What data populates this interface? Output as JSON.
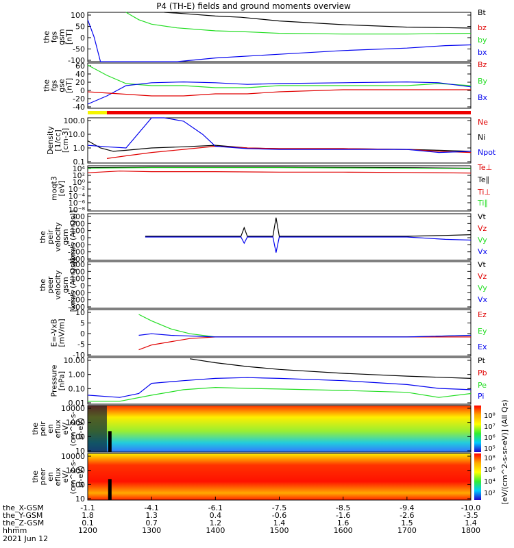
{
  "title": "P4 (TH-E) fields and ground moments overview",
  "colors": {
    "black": "#000000",
    "red": "#e00000",
    "green": "#22dd22",
    "blue": "#0000ee",
    "yellow": "#f5f500",
    "bar_red": "#ee0000"
  },
  "chart_data": [
    {
      "type": "line",
      "panel": "fgs_gsm",
      "ylabel": [
        "the",
        "fgs",
        "gsm",
        "[nT]"
      ],
      "yticks": [
        "100",
        "50",
        "0",
        "-50",
        "-100"
      ],
      "ylim": [
        -100,
        100
      ],
      "legend": [
        {
          "label": "Bt",
          "color": "black"
        },
        {
          "label": "bz",
          "color": "red"
        },
        {
          "label": "by",
          "color": "green"
        },
        {
          "label": "bx",
          "color": "blue"
        }
      ],
      "series": [
        {
          "name": "Bt",
          "color": "black",
          "x": [
            13.2,
            13.5,
            14.0,
            14.4,
            15.0,
            16.0,
            17.0,
            17.6,
            18.0
          ],
          "y": [
            100,
            95,
            85,
            80,
            65,
            50,
            40,
            38,
            36
          ]
        },
        {
          "name": "by",
          "color": "green",
          "x": [
            12.6,
            12.8,
            13.0,
            13.4,
            14.0,
            14.4,
            15.0,
            16.0,
            17.0,
            18.0
          ],
          "y": [
            100,
            70,
            52,
            37,
            25,
            22,
            15,
            12,
            12,
            15
          ]
        },
        {
          "name": "bx",
          "color": "blue",
          "x": [
            12.0,
            12.1,
            12.2,
            12.9,
            13.4,
            14.0,
            15.0,
            16.0,
            17.0,
            17.6,
            18.0
          ],
          "y": [
            70,
            0,
            -100,
            -100,
            -100,
            -85,
            -70,
            -55,
            -45,
            -35,
            -32
          ]
        }
      ]
    },
    {
      "type": "line",
      "panel": "fgs_gse",
      "ylabel": [
        "the",
        "fgs",
        "gse",
        "[nT]"
      ],
      "yticks": [
        "60",
        "40",
        "20",
        "0",
        "-20",
        "-40"
      ],
      "ylim": [
        -50,
        60
      ],
      "legend": [
        {
          "label": "Bz",
          "color": "red"
        },
        {
          "label": "By",
          "color": "green"
        },
        {
          "label": "Bx",
          "color": "blue"
        }
      ],
      "series": [
        {
          "name": "By",
          "color": "green",
          "x": [
            12.0,
            12.3,
            12.6,
            13.0,
            13.5,
            14.0,
            14.5,
            15.0,
            16.0,
            17.0,
            17.5,
            18.0
          ],
          "y": [
            55,
            30,
            10,
            5,
            5,
            0,
            0,
            5,
            5,
            5,
            10,
            5
          ]
        },
        {
          "name": "Bx",
          "color": "blue",
          "x": [
            12.0,
            12.3,
            12.6,
            13.0,
            13.5,
            14.0,
            14.5,
            15.0,
            16.0,
            17.0,
            17.5,
            18.0
          ],
          "y": [
            -40,
            -20,
            5,
            12,
            14,
            12,
            8,
            10,
            12,
            14,
            12,
            2
          ]
        },
        {
          "name": "Bz",
          "color": "red",
          "x": [
            12.0,
            12.5,
            13.0,
            13.5,
            14.0,
            14.5,
            15.0,
            16.0,
            17.0,
            18.0
          ],
          "y": [
            -10,
            -15,
            -20,
            -20,
            -15,
            -15,
            -10,
            -5,
            -5,
            -5
          ]
        }
      ]
    },
    {
      "type": "line",
      "panel": "density",
      "yscale": "log",
      "ylabel": [
        "Density",
        "[1/cc]",
        "[cm-3]"
      ],
      "yticks": [
        "100.0",
        "10.0",
        "1.0",
        "0.1"
      ],
      "ylim": [
        0.1,
        100
      ],
      "legend": [
        {
          "label": "Ne",
          "color": "red"
        },
        {
          "label": "Ni",
          "color": "black"
        },
        {
          "label": "Npot",
          "color": "blue"
        }
      ],
      "series": [
        {
          "name": "Ni",
          "color": "black",
          "x": [
            12.0,
            12.2,
            12.4,
            12.6,
            13.0,
            13.5,
            14.0,
            14.5,
            15.0,
            16.0,
            17.0,
            17.5,
            18.0
          ],
          "y": [
            3,
            1.0,
            0.6,
            0.7,
            1.0,
            1.2,
            1.5,
            1.0,
            0.9,
            0.9,
            0.8,
            0.7,
            0.6
          ]
        },
        {
          "name": "Ne",
          "color": "red",
          "x": [
            12.3,
            12.6,
            13.0,
            13.5,
            14.0,
            14.5,
            15.0,
            16.0,
            17.0,
            17.5,
            18.0
          ],
          "y": [
            0.2,
            0.3,
            0.5,
            0.8,
            1.3,
            1.0,
            0.9,
            0.9,
            0.8,
            0.6,
            0.5
          ]
        },
        {
          "name": "Npot",
          "color": "blue",
          "x": [
            12.0,
            12.3,
            12.6,
            13.0,
            13.2,
            13.5,
            13.8,
            14.0,
            14.5,
            15.0,
            16.0,
            17.0,
            17.5,
            18.0
          ],
          "y": [
            1.5,
            1.2,
            1.0,
            100,
            100,
            60,
            8,
            1.3,
            0.9,
            0.8,
            0.8,
            0.8,
            0.5,
            0.6
          ]
        }
      ]
    },
    {
      "type": "line",
      "panel": "temperature",
      "yscale": "log",
      "ylabel": [
        "moqt3",
        "[eV]"
      ],
      "yticks": [
        "10⁴",
        "10²",
        "10⁰",
        "10⁻²",
        "10⁻⁴",
        "10⁻⁶",
        "10⁻⁸"
      ],
      "ylim": [
        1e-09,
        10000.0
      ],
      "legend": [
        {
          "label": "Te⊥",
          "color": "red"
        },
        {
          "label": "Te∥",
          "color": "black"
        },
        {
          "label": "Ti⊥",
          "color": "red"
        },
        {
          "label": "Ti∥",
          "color": "green"
        }
      ],
      "series": [
        {
          "name": "Te∥",
          "color": "black",
          "x": [
            12.0,
            13.0,
            14.0,
            15.0,
            16.0,
            17.0,
            18.0
          ],
          "y": [
            3000,
            4000,
            4000,
            4000,
            3500,
            3000,
            2000
          ]
        },
        {
          "name": "Ti∥",
          "color": "green",
          "x": [
            12.0,
            13.0,
            14.0,
            15.0,
            16.0,
            17.0,
            18.0
          ],
          "y": [
            2000,
            3000,
            3000,
            3000,
            2500,
            2000,
            1500
          ]
        },
        {
          "name": "Te⊥",
          "color": "red",
          "x": [
            12.0,
            12.5,
            13.0,
            14.0,
            15.0,
            16.0,
            17.0,
            18.0
          ],
          "y": [
            100,
            300,
            200,
            200,
            150,
            150,
            120,
            80
          ]
        }
      ]
    },
    {
      "type": "line",
      "panel": "peir_velocity",
      "ylabel": [
        "the",
        "peir",
        "velocity",
        "gsm",
        "[km/s (All Qs)]"
      ],
      "yticks": [
        "300",
        "200",
        "100",
        "0",
        "-100",
        "-200",
        "-300"
      ],
      "ylim": [
        -300,
        300
      ],
      "legend": [
        {
          "label": "Vt",
          "color": "black"
        },
        {
          "label": "Vz",
          "color": "red"
        },
        {
          "label": "Vy",
          "color": "green"
        },
        {
          "label": "Vx",
          "color": "blue"
        }
      ],
      "series": [
        {
          "name": "Vt",
          "color": "black",
          "x": [
            12.9,
            14.0,
            14.4,
            14.45,
            14.5,
            14.9,
            14.95,
            15.0,
            16.0,
            17.0,
            17.6,
            18.0
          ],
          "y": [
            10,
            10,
            10,
            120,
            10,
            10,
            250,
            10,
            10,
            10,
            20,
            30
          ]
        },
        {
          "name": "Vx",
          "color": "blue",
          "x": [
            12.9,
            14.0,
            14.4,
            14.45,
            14.5,
            14.9,
            14.95,
            15.0,
            16.0,
            17.0,
            17.6,
            18.0
          ],
          "y": [
            0,
            0,
            0,
            -80,
            0,
            0,
            -200,
            0,
            0,
            0,
            -30,
            -40
          ]
        }
      ]
    },
    {
      "type": "line",
      "panel": "peer_velocity",
      "ylabel": [
        "the",
        "peer",
        "velocity",
        "gsm",
        "[km/s (All Qs)]"
      ],
      "yticks": [
        "300",
        "200",
        "100",
        "0",
        "-100",
        "-200",
        "-300"
      ],
      "ylim": [
        -300,
        300
      ],
      "legend": [
        {
          "label": "Vt",
          "color": "black"
        },
        {
          "label": "Vz",
          "color": "red"
        },
        {
          "label": "Vy",
          "color": "green"
        },
        {
          "label": "Vx",
          "color": "blue"
        }
      ],
      "series": []
    },
    {
      "type": "line",
      "panel": "efield",
      "ylabel": [
        "E=-VxB",
        "[mV/m]"
      ],
      "yticks": [
        "10",
        "5",
        "0",
        "-5",
        "-10"
      ],
      "ylim": [
        -12,
        17
      ],
      "legend": [
        {
          "label": "Ez",
          "color": "red"
        },
        {
          "label": "Ey",
          "color": "green"
        },
        {
          "label": "Ex",
          "color": "blue"
        }
      ],
      "series": [
        {
          "name": "Ey",
          "color": "green",
          "x": [
            12.8,
            13.0,
            13.3,
            13.6,
            14.0,
            15.0,
            16.0,
            17.0,
            18.0
          ],
          "y": [
            14,
            10,
            5,
            2,
            0,
            0,
            0,
            0,
            1
          ]
        },
        {
          "name": "Ez",
          "color": "red",
          "x": [
            12.8,
            13.0,
            13.3,
            13.6,
            14.0,
            15.0,
            16.0,
            17.0,
            18.0
          ],
          "y": [
            -8,
            -5,
            -3,
            -1,
            0,
            0,
            0,
            0,
            0
          ]
        },
        {
          "name": "Ex",
          "color": "blue",
          "x": [
            12.8,
            13.0,
            13.3,
            14.0,
            15.0,
            16.0,
            17.0,
            18.0
          ],
          "y": [
            1,
            2,
            1,
            0,
            0,
            0,
            0,
            1
          ]
        }
      ]
    },
    {
      "type": "line",
      "panel": "pressure",
      "yscale": "log",
      "ylabel": [
        "Pressure",
        "[nPa]"
      ],
      "yticks": [
        "10.00",
        "1.00",
        "0.10",
        "0.01"
      ],
      "ylim": [
        0.006,
        25
      ],
      "legend": [
        {
          "label": "Pt",
          "color": "black"
        },
        {
          "label": "Pb",
          "color": "red"
        },
        {
          "label": "Pe",
          "color": "green"
        },
        {
          "label": "Pi",
          "color": "blue"
        }
      ],
      "series": [
        {
          "name": "Pt",
          "color": "black",
          "x": [
            13.6,
            14.0,
            14.5,
            15.0,
            16.0,
            17.0,
            18.0
          ],
          "y": [
            20,
            10,
            5,
            3,
            1.5,
            0.9,
            0.6
          ]
        },
        {
          "name": "Pi",
          "color": "blue",
          "x": [
            12.0,
            12.5,
            12.8,
            13.0,
            13.5,
            14.0,
            14.5,
            15.0,
            16.0,
            17.0,
            17.5,
            18.0
          ],
          "y": [
            0.03,
            0.02,
            0.04,
            0.25,
            0.4,
            0.6,
            0.7,
            0.6,
            0.4,
            0.2,
            0.1,
            0.08
          ]
        },
        {
          "name": "Pe",
          "color": "green",
          "x": [
            12.0,
            12.5,
            13.0,
            13.5,
            14.0,
            14.5,
            15.0,
            16.0,
            17.0,
            17.5,
            18.0
          ],
          "y": [
            0.01,
            0.01,
            0.03,
            0.08,
            0.12,
            0.1,
            0.09,
            0.07,
            0.05,
            0.02,
            0.04
          ]
        }
      ]
    },
    {
      "type": "heatmap",
      "panel": "peir_eflux",
      "yscale": "log",
      "ylabel": [
        "the",
        "peir",
        "en",
        "eflux",
        "eV/",
        "(cm^2-s-",
        "sr-eV)"
      ],
      "yticks": [
        "10000",
        "1000",
        "100",
        "10"
      ]
    },
    {
      "type": "heatmap",
      "panel": "peer_eflux",
      "yscale": "log",
      "ylabel": [
        "the",
        "peer",
        "en",
        "eflux",
        "eV/",
        "(cm^2-s-",
        "sr-eV)"
      ],
      "yticks": [
        "10000",
        "1000",
        "100",
        "10"
      ]
    }
  ],
  "colorbar": {
    "label": "[eV/(cm^2-s-sr-eV)] (All Qs)",
    "ticks1": [
      "10⁸",
      "10⁷",
      "10⁶",
      "10⁵"
    ],
    "ticks2": [
      "10⁸",
      "10⁶",
      "10⁴",
      "10²"
    ]
  },
  "x_axis": {
    "rows": [
      {
        "label": "the_X-GSM",
        "values": [
          "-1.1",
          "-4.1",
          "-6.1",
          "-7.5",
          "-8.5",
          "-9.4",
          "-10.0"
        ]
      },
      {
        "label": "the_Y-GSM",
        "values": [
          "1.8",
          "1.3",
          "0.4",
          "-0.6",
          "-1.6",
          "-2.6",
          "-3.5"
        ]
      },
      {
        "label": "the_Z-GSM",
        "values": [
          "0.1",
          "0.7",
          "1.2",
          "1.4",
          "1.6",
          "1.5",
          "1.4"
        ]
      },
      {
        "label": "hhmm",
        "values": [
          "1200",
          "1300",
          "1400",
          "1500",
          "1600",
          "1700",
          "1800"
        ]
      }
    ],
    "date": "2021 Jun 12"
  }
}
